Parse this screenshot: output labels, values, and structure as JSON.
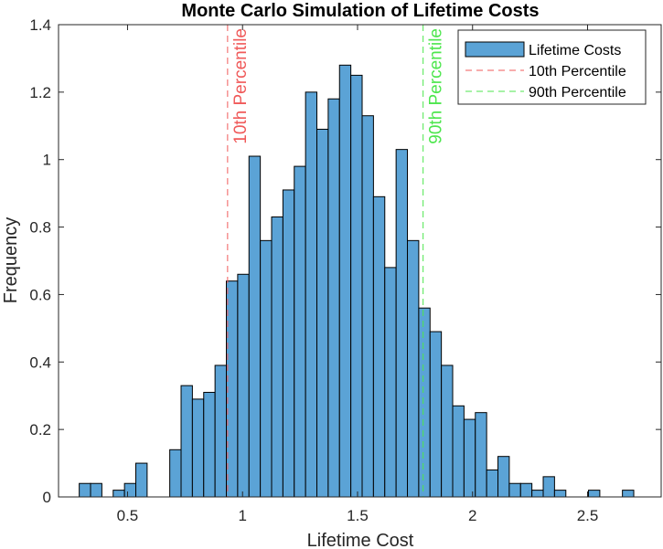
{
  "chart_data": {
    "type": "bar",
    "title": "Monte Carlo Simulation of Lifetime Costs",
    "xlabel": "Lifetime Cost",
    "ylabel": "Frequency",
    "xlim": [
      0.2,
      2.82
    ],
    "ylim": [
      0,
      1.4
    ],
    "xticks": [
      0.5,
      1,
      1.5,
      2,
      2.5
    ],
    "xtick_labels": [
      "0.5",
      "1",
      "1.5",
      "2",
      "2.5"
    ],
    "yticks": [
      0,
      0.2,
      0.4,
      0.6,
      0.8,
      1,
      1.2,
      1.4
    ],
    "ytick_labels": [
      "0",
      "0.2",
      "0.4",
      "0.6",
      "0.8",
      "1",
      "1.2",
      "1.4"
    ],
    "bin_width": 0.0492,
    "bin_start": 0.29,
    "values": [
      0.04,
      0.04,
      0,
      0.02,
      0.04,
      0.1,
      0,
      0,
      0.14,
      0.33,
      0.29,
      0.31,
      0.39,
      0.64,
      0.66,
      1.01,
      0.76,
      0.83,
      0.91,
      0.98,
      1.2,
      1.09,
      1.18,
      1.28,
      1.25,
      1.13,
      0.89,
      0.68,
      1.03,
      0.76,
      0.56,
      0.49,
      0.39,
      0.27,
      0.23,
      0.25,
      0.08,
      0.12,
      0.04,
      0.04,
      0.02,
      0.06,
      0.02,
      0,
      0,
      0.02,
      0,
      0,
      0.02
    ],
    "bar_color": "#5ba3d6",
    "bar_edge_color": "#000000",
    "vlines": [
      {
        "name": "10th Percentile",
        "label": "10th Percentile",
        "x": 0.935,
        "color": "#f05a5a"
      },
      {
        "name": "90th Percentile",
        "label": "90th Percentile",
        "x": 1.785,
        "color": "#4de64d"
      }
    ],
    "legend": {
      "placement": "top-right",
      "entries": [
        "Lifetime Costs",
        "10th Percentile",
        "90th Percentile"
      ]
    },
    "grid": false
  }
}
